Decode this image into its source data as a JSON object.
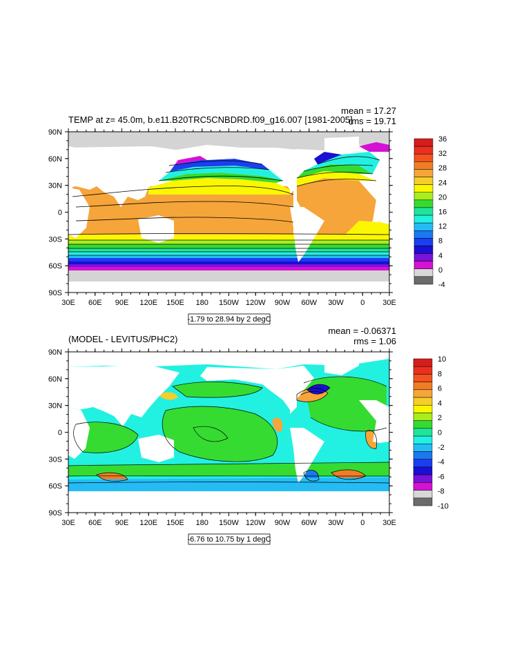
{
  "panels": [
    {
      "title": "TEMP at z=  45.0m, b.e11.B20TRC5CNBDRD.f09_g16.007 [1981-2005]",
      "mean_text": "mean = 17.27",
      "rms_text": "rms = 19.71",
      "range_text": "-1.79 to 28.94 by 2 degC",
      "lat_labels": [
        "90N",
        "60N",
        "30N",
        "0",
        "30S",
        "60S",
        "90S"
      ],
      "lon_labels": [
        "30E",
        "60E",
        "90E",
        "120E",
        "150E",
        "180",
        "150W",
        "120W",
        "90W",
        "60W",
        "30W",
        "0",
        "30E"
      ],
      "colorbar_labels": [
        "36",
        "32",
        "28",
        "24",
        "20",
        "16",
        "12",
        "8",
        "4",
        "0",
        "-4"
      ],
      "colorbar_colors": [
        "#d71c1c",
        "#ea2f21",
        "#f4521e",
        "#f07d26",
        "#f6a53a",
        "#f7cd29",
        "#fbf700",
        "#a8ee1f",
        "#36db31",
        "#1fe49a",
        "#22f1e1",
        "#25bcf5",
        "#1a78f0",
        "#1b3ef0",
        "#1a0fd5",
        "#7a12d8",
        "#d511d5",
        "#d8d8d8",
        "#6b6b6b"
      ],
      "land_color": "#ffffff"
    },
    {
      "title": "(MODEL - LEVITUS/PHC2)",
      "mean_text": "mean = -0.06371",
      "rms_text": "rms = 1.06",
      "range_text": "-6.76 to 10.75 by 1 degC",
      "lat_labels": [
        "90N",
        "60N",
        "30N",
        "0",
        "30S",
        "60S",
        "90S"
      ],
      "lon_labels": [
        "30E",
        "60E",
        "90E",
        "120E",
        "150E",
        "180",
        "150W",
        "120W",
        "90W",
        "60W",
        "30W",
        "0",
        "30E"
      ],
      "colorbar_labels": [
        "10",
        "8",
        "6",
        "4",
        "2",
        "0",
        "-2",
        "-4",
        "-6",
        "-8",
        "-10"
      ],
      "colorbar_colors": [
        "#d71c1c",
        "#ea2f21",
        "#f4521e",
        "#f07d26",
        "#f6a53a",
        "#f7cd29",
        "#fbf700",
        "#a8ee1f",
        "#36db31",
        "#1fe49a",
        "#22f1e1",
        "#25bcf5",
        "#1a78f0",
        "#1b3ef0",
        "#1a0fd5",
        "#7a12d8",
        "#d511d5",
        "#d8d8d8",
        "#6b6b6b"
      ],
      "land_color": "#ffffff"
    }
  ]
}
